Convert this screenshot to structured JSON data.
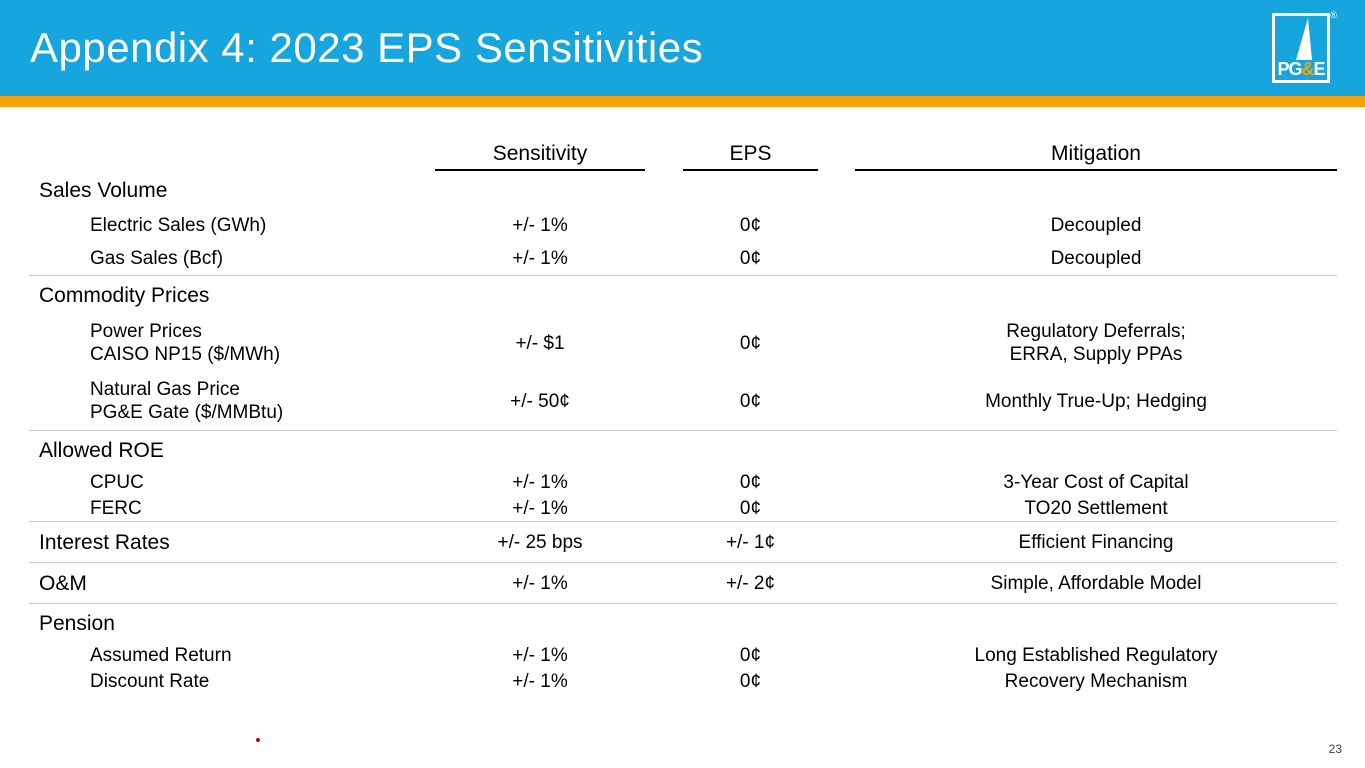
{
  "slide": {
    "title": "Appendix 4: 2023 EPS Sensitivities",
    "page_number": "23",
    "colors": {
      "header_bg": "#16A5DC",
      "accent_orange": "#F3A209",
      "divider": "#C9C9C9",
      "footnote_dot": "#C00000"
    }
  },
  "logo": {
    "pg": "PG",
    "amp": "&",
    "e": "E",
    "registered": "®"
  },
  "table": {
    "columns": [
      "Sensitivity",
      "EPS",
      "Mitigation"
    ],
    "sections": [
      {
        "label": "Sales Volume",
        "type": "section",
        "item_style": "normal",
        "divider_after": true,
        "items": [
          {
            "label": [
              "Electric Sales (GWh)"
            ],
            "sensitivity": "+/- 1%",
            "eps": "0¢",
            "mitigation": [
              "Decoupled"
            ]
          },
          {
            "label": [
              "Gas Sales (Bcf)"
            ],
            "sensitivity": "+/- 1%",
            "eps": "0¢",
            "mitigation": [
              "Decoupled"
            ]
          }
        ]
      },
      {
        "label": "Commodity Prices",
        "type": "section",
        "item_style": "tall",
        "divider_after": true,
        "items": [
          {
            "label": [
              "Power Prices",
              "CAISO NP15 ($/MWh)"
            ],
            "sensitivity": "+/- $1",
            "eps": "0¢",
            "mitigation": [
              "Regulatory Deferrals;",
              "ERRA, Supply PPAs"
            ]
          },
          {
            "label": [
              "Natural Gas Price",
              "PG&E Gate ($/MMBtu)"
            ],
            "sensitivity": "+/- 50¢",
            "eps": "0¢",
            "mitigation": [
              "Monthly True-Up; Hedging"
            ]
          }
        ]
      },
      {
        "label": "Allowed ROE",
        "type": "section",
        "item_style": "tight",
        "divider_after": true,
        "items": [
          {
            "label": [
              "CPUC"
            ],
            "sensitivity": "+/- 1%",
            "eps": "0¢",
            "mitigation": [
              "3-Year Cost of Capital"
            ]
          },
          {
            "label": [
              "FERC"
            ],
            "sensitivity": "+/- 1%",
            "eps": "0¢",
            "mitigation": [
              "TO20 Settlement"
            ]
          }
        ]
      },
      {
        "label": "Interest Rates",
        "type": "inline",
        "divider_after": true,
        "sensitivity": "+/- 25 bps",
        "eps": "+/- 1¢",
        "mitigation": [
          "Efficient Financing"
        ]
      },
      {
        "label": "O&M",
        "type": "inline",
        "divider_after": true,
        "sensitivity": "+/- 1%",
        "eps": "+/- 2¢",
        "mitigation": [
          "Simple, Affordable Model"
        ]
      },
      {
        "label": "Pension",
        "type": "section",
        "item_style": "tight",
        "divider_after": false,
        "items": [
          {
            "label": [
              "Assumed Return"
            ],
            "sensitivity": "+/- 1%",
            "eps": "0¢",
            "mitigation": [
              "Long Established Regulatory"
            ]
          },
          {
            "label": [
              "Discount Rate"
            ],
            "sensitivity": "+/- 1%",
            "eps": "0¢",
            "mitigation": [
              "Recovery Mechanism"
            ]
          }
        ]
      }
    ]
  }
}
